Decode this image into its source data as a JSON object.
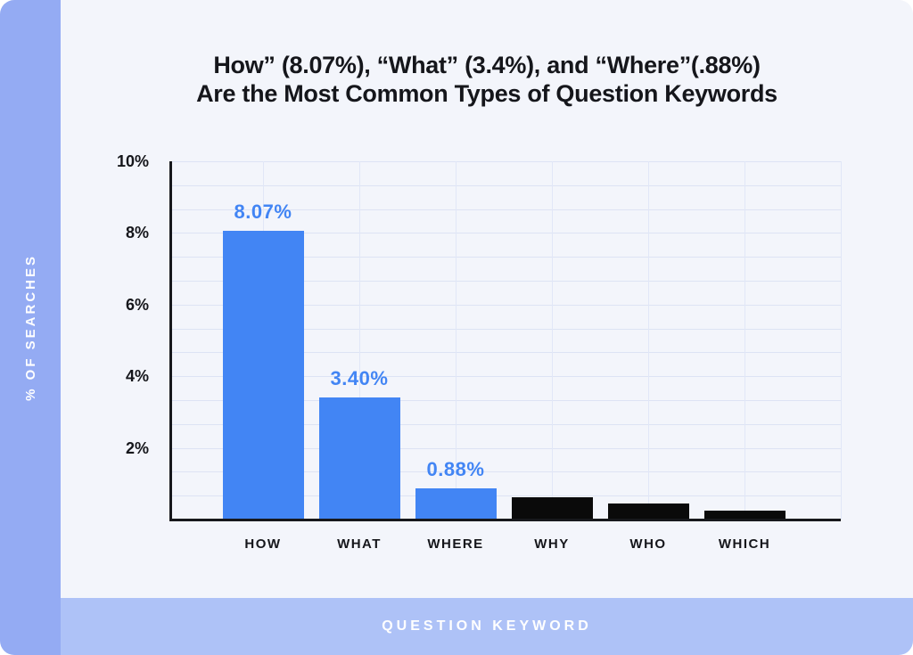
{
  "title": {
    "line1": "How” (8.07%), “What” (3.4%), and “Where”(.88%)",
    "line2": "Are the Most Common Types of Question Keywords",
    "color": "#15161b"
  },
  "sidebar": {
    "label": "% OF SEARCHES",
    "background": "#94abf3",
    "text_color": "#ffffff"
  },
  "footer": {
    "label": "QUESTION KEYWORD",
    "background": "#aec2f7",
    "text_color": "#ffffff"
  },
  "colors": {
    "page_background": "#ffffff",
    "card_background": "#f3f5fb",
    "accent_blue": "#4285f4",
    "bar_black": "#0a0a0a",
    "axis": "#17181c",
    "gridline": "#dde3f4"
  },
  "chart_data": {
    "type": "bar",
    "title": "How” (8.07%), “What” (3.4%), and “Where”(.88%) Are the Most Common Types of Question Keywords",
    "xlabel": "QUESTION KEYWORD",
    "ylabel": "% OF SEARCHES",
    "categories": [
      "HOW",
      "WHAT",
      "WHERE",
      "WHY",
      "WHO",
      "WHICH"
    ],
    "values": [
      8.07,
      3.4,
      0.88,
      0.63,
      0.45,
      0.26
    ],
    "data_labels": [
      "8.07%",
      "3.40%",
      "0.88%",
      "",
      "",
      ""
    ],
    "bar_colors": [
      "#4285f4",
      "#4285f4",
      "#4285f4",
      "#0a0a0a",
      "#0a0a0a",
      "#0a0a0a"
    ],
    "data_label_color": "#4285f4",
    "ylim": [
      0,
      10
    ],
    "yticks": [
      {
        "value": 10,
        "label": "10%"
      },
      {
        "value": 8,
        "label": "8%"
      },
      {
        "value": 6,
        "label": "6%"
      },
      {
        "value": 4,
        "label": "4%"
      },
      {
        "value": 2,
        "label": "2%"
      }
    ],
    "grid": {
      "horizontal_intervals": 15,
      "vertical_lines": 7,
      "visible": true
    },
    "legend": "none"
  }
}
